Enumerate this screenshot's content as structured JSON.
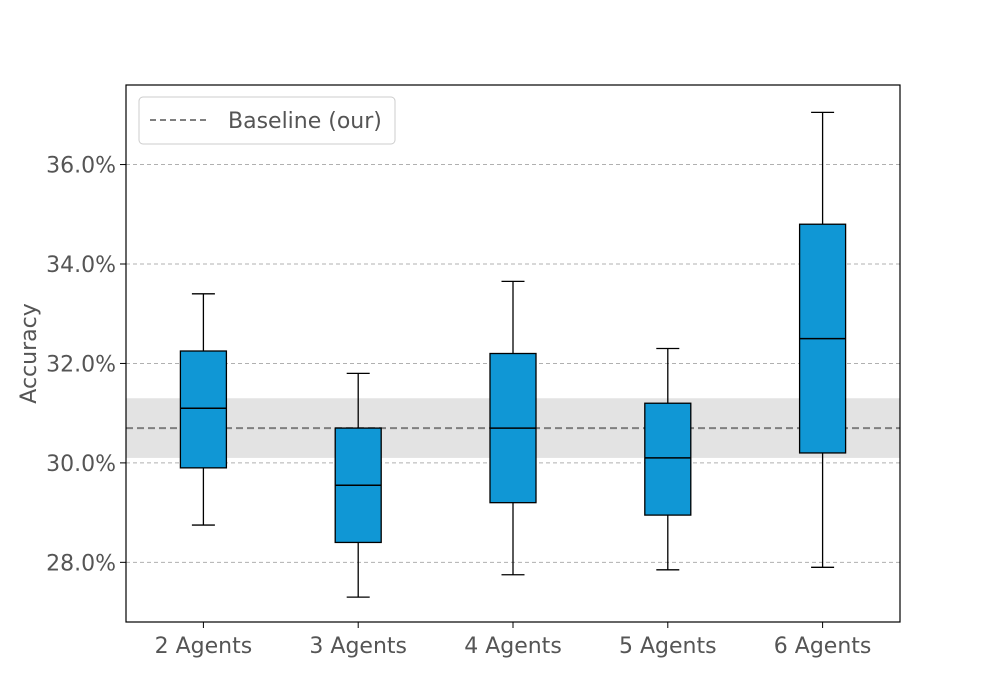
{
  "chart_data": {
    "type": "boxplot",
    "title": "",
    "xlabel": "",
    "ylabel": "Accuracy",
    "ylim": [
      26.8,
      37.6
    ],
    "yticks": [
      28.0,
      30.0,
      32.0,
      34.0,
      36.0
    ],
    "ytick_labels": [
      "28.0%",
      "30.0%",
      "32.0%",
      "34.0%",
      "36.0%"
    ],
    "grid": "horizontal dashed",
    "categories": [
      "2 Agents",
      "3 Agents",
      "4 Agents",
      "5 Agents",
      "6 Agents"
    ],
    "boxes": [
      {
        "whisker_low": 28.75,
        "q1": 29.9,
        "median": 31.1,
        "q3": 32.25,
        "whisker_high": 33.4
      },
      {
        "whisker_low": 27.3,
        "q1": 28.4,
        "median": 29.55,
        "q3": 30.7,
        "whisker_high": 31.8
      },
      {
        "whisker_low": 27.75,
        "q1": 29.2,
        "median": 30.7,
        "q3": 32.2,
        "whisker_high": 33.65
      },
      {
        "whisker_low": 27.85,
        "q1": 28.95,
        "median": 30.1,
        "q3": 31.2,
        "whisker_high": 32.3
      },
      {
        "whisker_low": 27.9,
        "q1": 30.2,
        "median": 32.5,
        "q3": 34.8,
        "whisker_high": 37.05
      }
    ],
    "baseline": {
      "label": "Baseline (our)",
      "value": 30.7,
      "band": [
        30.1,
        31.3
      ]
    },
    "legend_position": "top-left",
    "colors": {
      "box_fill": "#1097d5",
      "box_edge": "#000000",
      "baseline_line": "#7f7f7f",
      "baseline_band": "#e3e3e3",
      "grid": "#b0b0b0"
    }
  }
}
